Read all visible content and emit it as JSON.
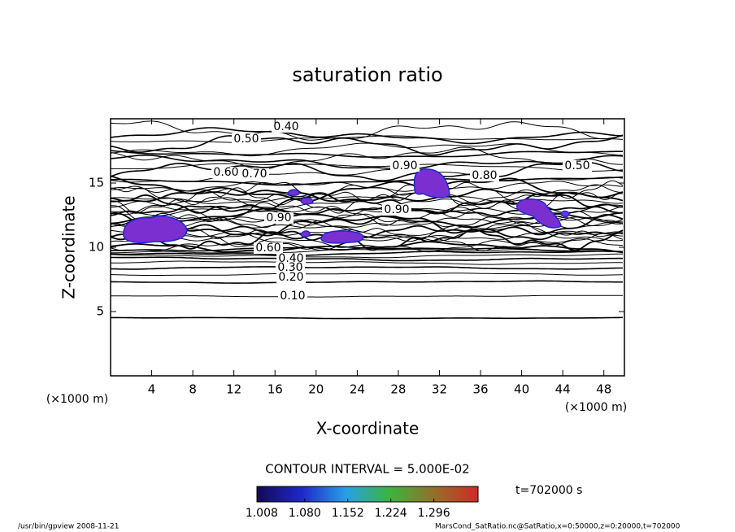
{
  "chart_data": {
    "type": "contour",
    "title": "saturation ratio",
    "xlabel": "X-coordinate",
    "ylabel": "Z-coordinate",
    "x_unit": "(×1000 m)",
    "y_unit": "(×1000 m)",
    "xlim": [
      0,
      50
    ],
    "ylim": [
      0,
      20
    ],
    "xticks": [
      4,
      8,
      12,
      16,
      20,
      24,
      28,
      32,
      36,
      40,
      44,
      48
    ],
    "yticks": [
      5,
      10,
      15
    ],
    "contour_interval": "CONTOUR INTERVAL = 5.000E-02",
    "contour_labels": [
      {
        "value": 0.4,
        "label": "0.40"
      },
      {
        "value": 0.5,
        "label": "0.50"
      },
      {
        "value": 0.5,
        "label": "0.50"
      },
      {
        "value": 0.6,
        "label": "0.60"
      },
      {
        "value": 0.7,
        "label": "0.70"
      },
      {
        "value": 0.8,
        "label": "0.80"
      },
      {
        "value": 0.9,
        "label": "0.90"
      },
      {
        "value": 0.9,
        "label": "0.90"
      },
      {
        "value": 0.9,
        "label": "0.90"
      },
      {
        "value": 0.6,
        "label": "0.60"
      },
      {
        "value": 0.4,
        "label": "0.40"
      },
      {
        "value": 0.3,
        "label": "0.30"
      },
      {
        "value": 0.2,
        "label": "0.20"
      },
      {
        "value": 0.1,
        "label": "0.10"
      }
    ],
    "colorbar_lim": [
      1.0,
      1.37
    ],
    "colorbar_ticks": [
      1.008,
      {
        "value": 1.08,
        "label": "1.080"
      },
      1.152,
      1.224,
      1.296
    ],
    "fill_color": "#7b2fd0",
    "time_label": "t=702000 s",
    "footer_left": "/usr/bin/gpview   2008-11-21",
    "footer_right": "MarsCond_SatRatio.nc@SatRatio,x=0:50000,z=0:20000,t=702000"
  }
}
